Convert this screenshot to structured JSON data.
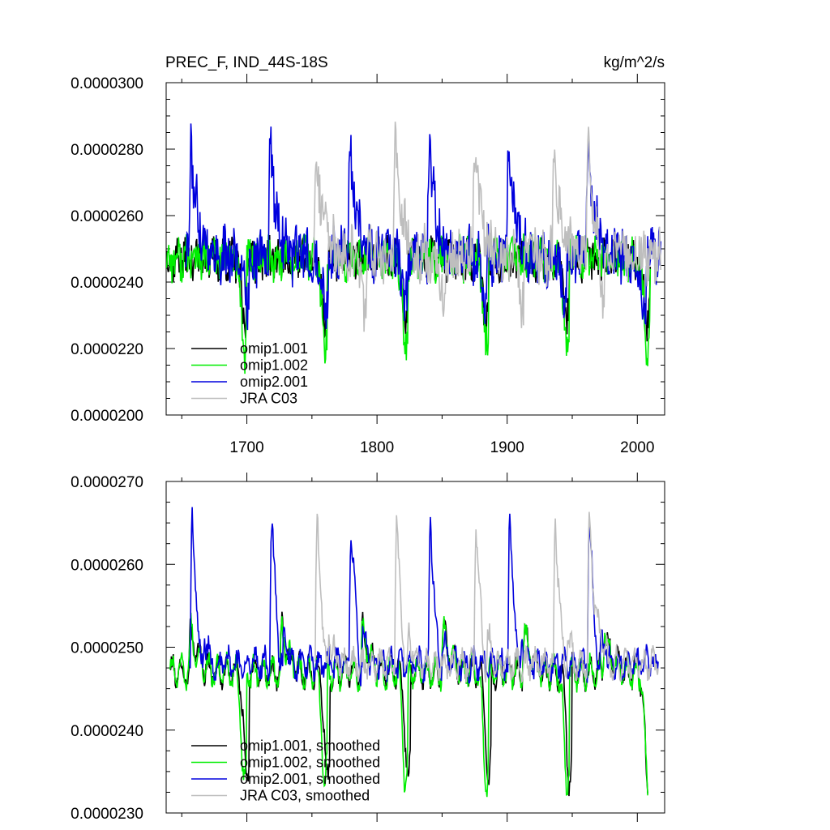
{
  "colors": {
    "omip1_001": "#000000",
    "omip1_002": "#00ee00",
    "omip2_001": "#0000dd",
    "jra_c03": "#bebebe",
    "axis": "#000000"
  },
  "chart_data": [
    {
      "type": "line",
      "title": "PREC_F, IND_44S-18S",
      "units": "kg/m^2/s",
      "xlim": [
        1638,
        2021
      ],
      "ylim": [
        2e-05,
        3e-05
      ],
      "y_ticks": [
        2e-05,
        2.2e-05,
        2.4e-05,
        2.6e-05,
        2.8e-05,
        3e-05
      ],
      "y_tick_labels": [
        "0.0000200",
        "0.0000220",
        "0.0000240",
        "0.0000260",
        "0.0000280",
        "0.0000300"
      ],
      "x_ticks": [
        1700,
        1800,
        1900,
        2000
      ],
      "x_tick_labels": [
        "1700",
        "1800",
        "1900",
        "2000"
      ],
      "legend_position": "bottom-left",
      "series": [
        {
          "key": "omip1_001",
          "name": "omip1.001",
          "start": 1638,
          "end": 2010,
          "base": 2.47e-05,
          "wob": 1.8e-07,
          "noise": 6e-07,
          "cyc": [
            1638,
            1700,
            1762,
            1824,
            1886,
            1948,
            2010
          ],
          "dips": [
            1698,
            1760,
            1822,
            1884,
            1946,
            2008
          ],
          "dipAmp": 2e-06,
          "peaks": [],
          "peakAmp": 0
        },
        {
          "key": "omip1_002",
          "name": "omip1.002",
          "start": 1638,
          "end": 2010,
          "base": 2.47e-05,
          "wob": 1.8e-07,
          "noise": 6e-07,
          "cyc": [
            1638,
            1700,
            1762,
            1824,
            1886,
            1948,
            2010
          ],
          "dips": [
            1698,
            1760,
            1822,
            1884,
            1946,
            2008
          ],
          "dipAmp": 2.8e-06,
          "peaks": [],
          "peakAmp": 0
        },
        {
          "key": "omip2_001",
          "name": "omip2.001",
          "start": 1653,
          "end": 2018,
          "base": 2.48e-05,
          "wob": 2e-07,
          "noise": 8e-07,
          "cyc": [
            1653,
            1714,
            1775,
            1836,
            1897,
            1958,
            2018
          ],
          "dips": [
            1700,
            1761,
            1822,
            1883,
            1944,
            2005
          ],
          "dipAmp": 1.5e-06,
          "peaks": [
            1657,
            1718,
            1779,
            1840,
            1901,
            1962
          ],
          "peakAmp": 3.3e-06
        },
        {
          "key": "jra_c03",
          "name": "JRA C03",
          "start": 1751,
          "end": 2018,
          "base": 2.48e-05,
          "wob": 2e-07,
          "noise": 8e-07,
          "cyc": [
            1751,
            1812,
            1873,
            1934,
            2018
          ],
          "dips": [
            1790,
            1851,
            1912,
            1973
          ],
          "dipAmp": 1.5e-06,
          "peaks": [
            1753,
            1814,
            1875,
            1936,
            1962
          ],
          "peakAmp": 3.3e-06
        }
      ]
    },
    {
      "type": "line",
      "title": "",
      "xlim": [
        1638,
        2021
      ],
      "ylim": [
        2.3e-05,
        2.7e-05
      ],
      "y_ticks": [
        2.3e-05,
        2.4e-05,
        2.5e-05,
        2.6e-05,
        2.7e-05
      ],
      "y_tick_labels": [
        "0.0000230",
        "0.0000240",
        "0.0000250",
        "0.0000260",
        "0.0000270"
      ],
      "x_ticks": [
        1700,
        1800,
        1900,
        2000
      ],
      "x_tick_labels": [],
      "legend_position": "bottom-left",
      "series": [
        {
          "key": "omip1_001",
          "name": "omip1.001, smoothed",
          "start": 1641,
          "end": 2008,
          "base": 2.47e-05,
          "wob": 1.5e-07,
          "noise": 1e-07,
          "cyc": [
            1641,
            1700,
            1762,
            1824,
            1886,
            1948,
            2008
          ],
          "dips": [
            1700,
            1762,
            1824,
            1886,
            1948,
            2008
          ],
          "dipAmp": 1.35e-06,
          "peaks": [
            1657,
            1727,
            1789,
            1851,
            1913,
            1975
          ],
          "peakAmp": 5e-07
        },
        {
          "key": "omip1_002",
          "name": "omip1.002, smoothed",
          "start": 1641,
          "end": 2008,
          "base": 2.47e-05,
          "wob": 1.5e-07,
          "noise": 1e-07,
          "cyc": [
            1641,
            1700,
            1762,
            1824,
            1886,
            1948,
            2008
          ],
          "dips": [
            1698,
            1760,
            1822,
            1884,
            1946,
            2008
          ],
          "dipAmp": 1.35e-06,
          "peaks": [
            1657,
            1727,
            1789,
            1851,
            1913,
            1975
          ],
          "peakAmp": 5e-07
        },
        {
          "key": "omip2_001",
          "name": "omip2.001, smoothed",
          "start": 1656,
          "end": 2016,
          "base": 2.48e-05,
          "wob": 1.2e-07,
          "noise": 1.2e-07,
          "cyc": [
            1656,
            1717,
            1778,
            1839,
            1900,
            1961,
            2016
          ],
          "dips": [
            1665,
            1726,
            1787,
            1848,
            1909,
            1970
          ],
          "dipAmp": 5e-07,
          "peaks": [
            1658,
            1719,
            1780,
            1841,
            1902,
            1963
          ],
          "peakAmp": 1.7e-06
        },
        {
          "key": "jra_c03",
          "name": "JRA C03, smoothed",
          "start": 1752,
          "end": 2016,
          "base": 2.48e-05,
          "wob": 1.2e-07,
          "noise": 1.2e-07,
          "cyc": [
            1752,
            1813,
            1874,
            1935,
            2016
          ],
          "dips": [
            1761,
            1822,
            1883,
            1944
          ],
          "dipAmp": 5e-07,
          "peaks": [
            1754,
            1815,
            1876,
            1937,
            1963
          ],
          "peakAmp": 1.7e-06
        }
      ]
    }
  ]
}
